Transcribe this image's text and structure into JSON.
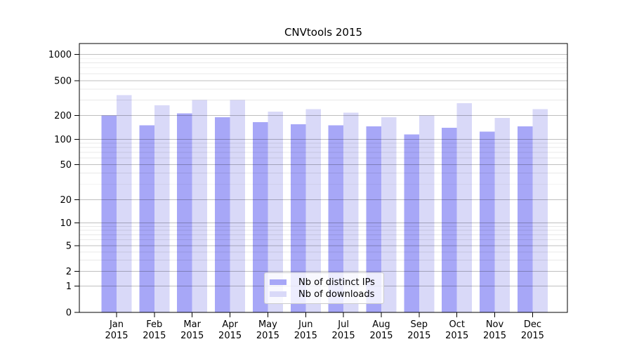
{
  "chart_data": {
    "type": "bar",
    "title": "CNVtools 2015",
    "categories": [
      "Jan",
      "Feb",
      "Mar",
      "Apr",
      "May",
      "Jun",
      "Jul",
      "Aug",
      "Sep",
      "Oct",
      "Nov",
      "Dec"
    ],
    "x_year": "2015",
    "series": [
      {
        "name": "Nb of distinct IPs",
        "color": "#a7a7f7",
        "values": [
          200,
          150,
          210,
          190,
          165,
          155,
          150,
          145,
          115,
          140,
          125,
          145
        ]
      },
      {
        "name": "Nb of downloads",
        "color": "#d9d9f8",
        "values": [
          340,
          260,
          300,
          300,
          220,
          235,
          215,
          190,
          200,
          275,
          185,
          235
        ]
      }
    ],
    "yaxis": {
      "scale": "log-with-zero",
      "ticks": [
        0,
        1,
        2,
        5,
        10,
        20,
        50,
        100,
        200,
        500,
        1000
      ],
      "tick_labels": [
        "0",
        "1",
        "2",
        "5",
        "10",
        "20",
        "50",
        "100",
        "200",
        "500",
        "1000"
      ]
    },
    "grid": {
      "major": true,
      "minor": true
    },
    "legend": {
      "position": "lower center",
      "labels": [
        "Nb of distinct IPs",
        "Nb of downloads"
      ]
    },
    "colors": {
      "major_grid": "rgba(0,0,0,0.25)",
      "minor_grid": "rgba(0,0,0,0.09)",
      "spine": "#000000",
      "text": "#000000",
      "background": "#ffffff"
    }
  }
}
